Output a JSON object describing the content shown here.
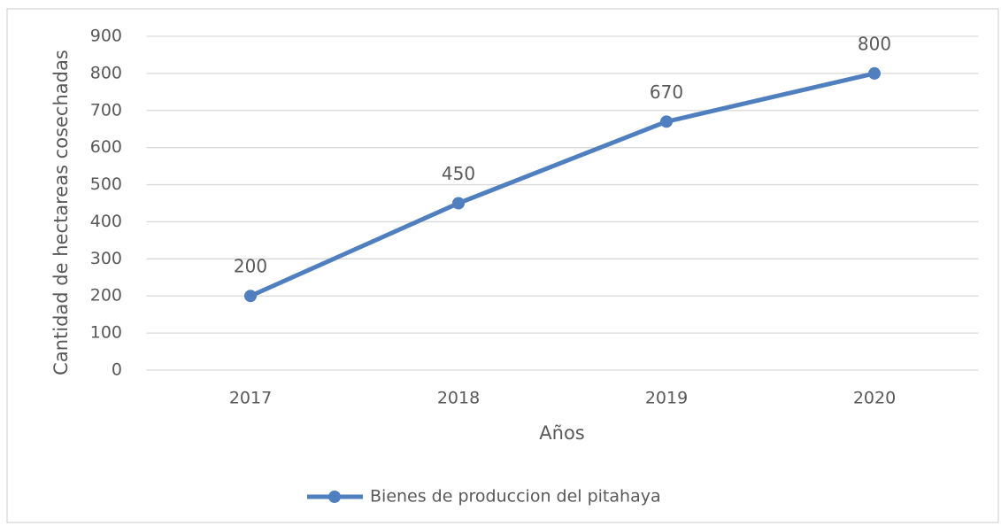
{
  "chart_data": {
    "type": "line",
    "x_label": "Años",
    "y_label": "Cantidad de hectareas cosechadas",
    "categories": [
      "2017",
      "2018",
      "2019",
      "2020"
    ],
    "series": [
      {
        "name": "Bienes de produccion del pitahaya",
        "color": "#4f7fbf",
        "values": [
          200,
          450,
          670,
          800
        ]
      }
    ],
    "ylim": [
      0,
      900
    ],
    "yticks": [
      0,
      100,
      200,
      300,
      400,
      500,
      600,
      700,
      800,
      900
    ],
    "grid": true,
    "legend": "bottom",
    "data_labels": true
  }
}
